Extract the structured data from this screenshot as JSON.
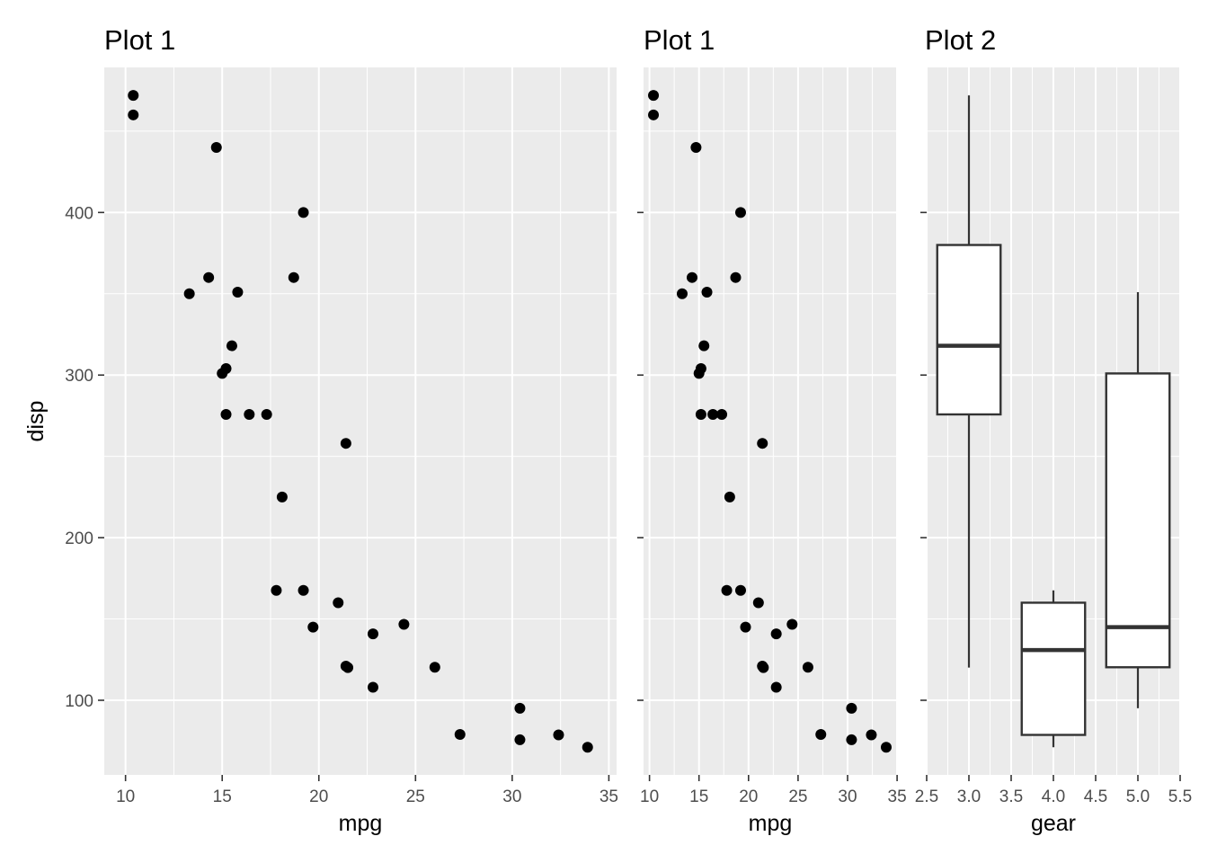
{
  "chart_data": [
    {
      "type": "scatter",
      "title": "Plot 1",
      "xlabel": "mpg",
      "ylabel": "disp",
      "xlim": [
        8.9,
        35.4
      ],
      "ylim": [
        54.1,
        489.2
      ],
      "xticks": [
        "10",
        "15",
        "20",
        "25",
        "30",
        "35"
      ],
      "yticks": [
        "100",
        "200",
        "300",
        "400"
      ],
      "grid": true,
      "points": [
        [
          10.4,
          472
        ],
        [
          10.4,
          460
        ],
        [
          14.7,
          440
        ],
        [
          19.2,
          400
        ],
        [
          13.3,
          350
        ],
        [
          14.3,
          360
        ],
        [
          15.8,
          351
        ],
        [
          18.7,
          360
        ],
        [
          15.5,
          318
        ],
        [
          15.0,
          301
        ],
        [
          15.2,
          304
        ],
        [
          15.2,
          275.8
        ],
        [
          16.4,
          275.8
        ],
        [
          17.3,
          275.8
        ],
        [
          21.4,
          258
        ],
        [
          18.1,
          225
        ],
        [
          17.8,
          167.6
        ],
        [
          19.2,
          167.6
        ],
        [
          21.0,
          160
        ],
        [
          19.7,
          145
        ],
        [
          22.8,
          140.8
        ],
        [
          24.4,
          146.7
        ],
        [
          21.4,
          121
        ],
        [
          21.5,
          120.1
        ],
        [
          26.0,
          120.3
        ],
        [
          22.8,
          108
        ],
        [
          30.4,
          95.1
        ],
        [
          27.3,
          79
        ],
        [
          30.4,
          75.7
        ],
        [
          32.4,
          78.7
        ],
        [
          33.9,
          71.1
        ]
      ]
    },
    {
      "type": "scatter",
      "title": "Plot 1",
      "xlabel": "mpg",
      "ylabel": "",
      "xlim": [
        9.4,
        34.9
      ],
      "ylim": [
        54.1,
        489.2
      ],
      "xticks": [
        "10",
        "15",
        "20",
        "25",
        "30",
        "35"
      ],
      "grid": true,
      "points": [
        [
          10.4,
          472
        ],
        [
          10.4,
          460
        ],
        [
          14.7,
          440
        ],
        [
          19.2,
          400
        ],
        [
          13.3,
          350
        ],
        [
          14.3,
          360
        ],
        [
          15.8,
          351
        ],
        [
          18.7,
          360
        ],
        [
          15.5,
          318
        ],
        [
          15.0,
          301
        ],
        [
          15.2,
          304
        ],
        [
          15.2,
          275.8
        ],
        [
          16.4,
          275.8
        ],
        [
          17.3,
          275.8
        ],
        [
          21.4,
          258
        ],
        [
          18.1,
          225
        ],
        [
          17.8,
          167.6
        ],
        [
          19.2,
          167.6
        ],
        [
          21.0,
          160
        ],
        [
          19.7,
          145
        ],
        [
          22.8,
          140.8
        ],
        [
          24.4,
          146.7
        ],
        [
          21.4,
          121
        ],
        [
          21.5,
          120.1
        ],
        [
          26.0,
          120.3
        ],
        [
          22.8,
          108
        ],
        [
          30.4,
          95.1
        ],
        [
          27.3,
          79
        ],
        [
          30.4,
          75.7
        ],
        [
          32.4,
          78.7
        ],
        [
          33.9,
          71.1
        ]
      ]
    },
    {
      "type": "box",
      "title": "Plot 2",
      "xlabel": "gear",
      "ylabel": "",
      "xlim": [
        2.5,
        5.5
      ],
      "ylim": [
        54.1,
        489.2
      ],
      "xticks": [
        "2.5",
        "3.0",
        "3.5",
        "4.0",
        "4.5",
        "5.0",
        "5.5"
      ],
      "grid": true,
      "boxes": [
        {
          "x": 3,
          "ymin": 120.1,
          "lower": 275.8,
          "middle": 318,
          "upper": 380,
          "ymax": 472
        },
        {
          "x": 4,
          "ymin": 71.1,
          "lower": 78.7,
          "middle": 130.9,
          "upper": 160,
          "ymax": 167.6
        },
        {
          "x": 5,
          "ymin": 95.1,
          "lower": 120.3,
          "middle": 145,
          "upper": 301,
          "ymax": 351
        }
      ]
    }
  ]
}
